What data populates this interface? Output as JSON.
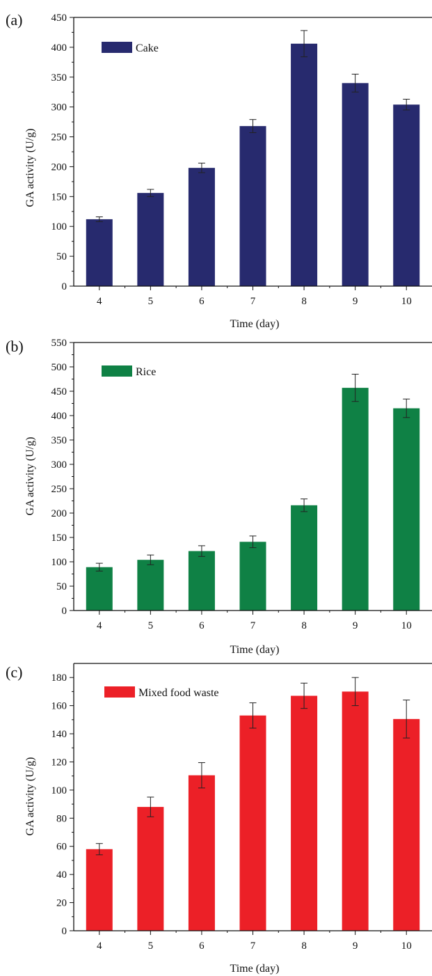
{
  "chart_data": [
    {
      "type": "bar",
      "panel_label": "(a)",
      "categories": [
        "4",
        "5",
        "6",
        "7",
        "8",
        "9",
        "10"
      ],
      "series": [
        {
          "name": "Cake",
          "values": [
            112,
            156,
            198,
            268,
            406,
            340,
            304
          ],
          "errors": [
            4,
            6,
            8,
            11,
            22,
            15,
            9
          ]
        }
      ],
      "xlabel": "Time (day)",
      "ylabel": "GA activity (U/g)",
      "ylim": [
        0,
        450
      ],
      "yticks": [
        0,
        50,
        100,
        150,
        200,
        250,
        300,
        350,
        400,
        450
      ],
      "color": "#272a6e",
      "legend_position": "top-left",
      "grid": false
    },
    {
      "type": "bar",
      "panel_label": "(b)",
      "categories": [
        "4",
        "5",
        "6",
        "7",
        "8",
        "9",
        "10"
      ],
      "series": [
        {
          "name": "Rice",
          "values": [
            89,
            104,
            122,
            141,
            216,
            457,
            415
          ],
          "errors": [
            8,
            10,
            11,
            12,
            13,
            28,
            19
          ]
        }
      ],
      "xlabel": "Time (day)",
      "ylabel": "GA activity (U/g)",
      "ylim": [
        0,
        550
      ],
      "yticks": [
        0,
        50,
        100,
        150,
        200,
        250,
        300,
        350,
        400,
        450,
        500,
        550
      ],
      "color": "#0f8145",
      "legend_position": "top-left",
      "grid": false
    },
    {
      "type": "bar",
      "panel_label": "(c)",
      "categories": [
        "4",
        "5",
        "6",
        "7",
        "8",
        "9",
        "10"
      ],
      "series": [
        {
          "name": "Mixed food waste",
          "values": [
            58,
            88,
            110.5,
            153,
            167,
            170,
            150.5
          ],
          "errors": [
            4,
            7,
            9,
            9,
            9,
            10,
            13.5
          ]
        }
      ],
      "xlabel": "Time (day)",
      "ylabel": "GA activity (U/g)",
      "ylim": [
        0,
        190
      ],
      "yticks": [
        0,
        20,
        40,
        60,
        80,
        100,
        120,
        140,
        160,
        180
      ],
      "color": "#ec2027",
      "legend_position": "top-left",
      "grid": false
    }
  ]
}
